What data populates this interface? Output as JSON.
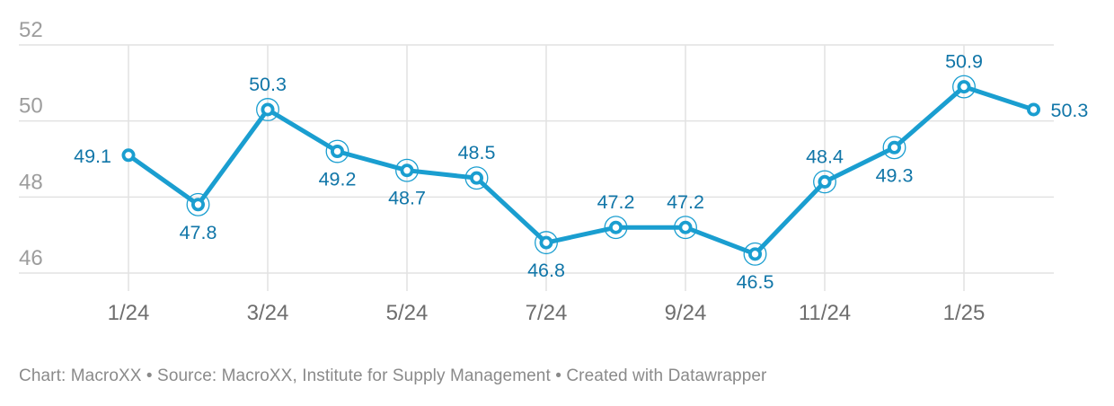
{
  "chart_data": {
    "type": "line",
    "values": [
      49.1,
      47.8,
      50.3,
      49.2,
      48.7,
      48.5,
      46.8,
      47.2,
      47.2,
      46.5,
      48.4,
      49.3,
      50.9,
      50.3
    ],
    "point_labels": [
      "49.1",
      "47.8",
      "50.3",
      "49.2",
      "48.7",
      "48.5",
      "46.8",
      "47.2",
      "47.2",
      "46.5",
      "48.4",
      "49.3",
      "50.9",
      "50.3"
    ],
    "label_placement": [
      "left",
      "below",
      "above",
      "below",
      "below",
      "above",
      "below",
      "above",
      "above",
      "below",
      "above",
      "below",
      "above",
      "right"
    ],
    "x_tick_labels": [
      "1/24",
      "3/24",
      "5/24",
      "7/24",
      "9/24",
      "11/24",
      "1/25"
    ],
    "x_tick_indices": [
      0,
      2,
      4,
      6,
      8,
      10,
      12
    ],
    "y_ticks": [
      52,
      50,
      48,
      46
    ],
    "ylim": [
      45.5,
      52
    ],
    "grid": true,
    "legend": "none",
    "title": "",
    "xlabel": "",
    "ylabel": ""
  },
  "footer": {
    "text": "Chart: MacroXX • Source: MacroXX, Institute for Supply Management • Created with Datawrapper"
  },
  "colors": {
    "line": "#1a9ed0",
    "point_fill": "#ffffff",
    "value_label": "#1176a8",
    "y_tick": "#9d9d9d",
    "x_tick": "#6e6e6e",
    "grid": "#e2e2e2",
    "footer_text": "#8a8a8a",
    "background": "#ffffff"
  }
}
